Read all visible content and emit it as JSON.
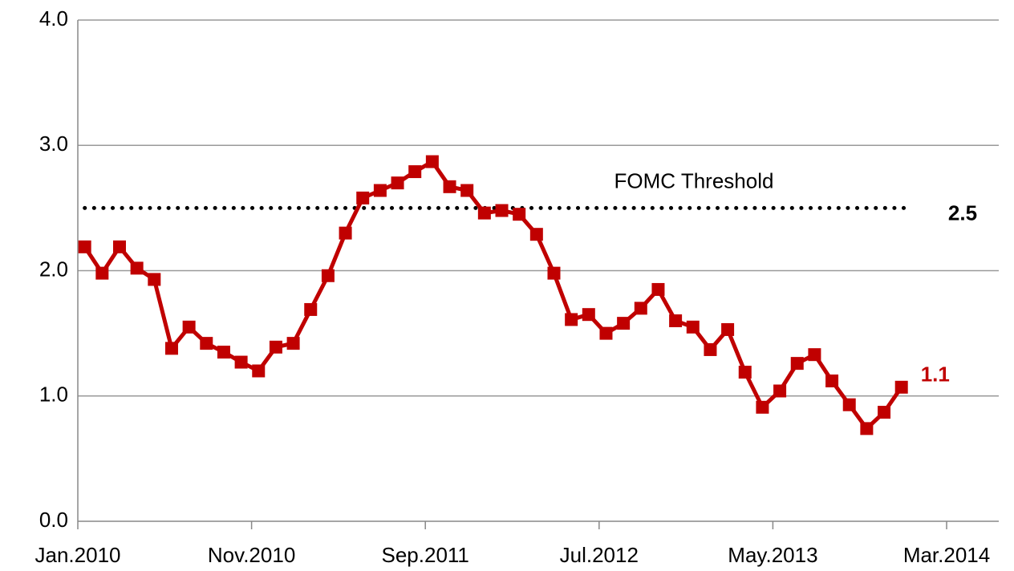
{
  "chart_data": {
    "type": "line",
    "x": [
      "2010-01",
      "2010-02",
      "2010-03",
      "2010-04",
      "2010-05",
      "2010-06",
      "2010-07",
      "2010-08",
      "2010-09",
      "2010-10",
      "2010-11",
      "2010-12",
      "2011-01",
      "2011-02",
      "2011-03",
      "2011-04",
      "2011-05",
      "2011-06",
      "2011-07",
      "2011-08",
      "2011-09",
      "2011-10",
      "2011-11",
      "2011-12",
      "2012-01",
      "2012-02",
      "2012-03",
      "2012-04",
      "2012-05",
      "2012-06",
      "2012-07",
      "2012-08",
      "2012-09",
      "2012-10",
      "2012-11",
      "2012-12",
      "2013-01",
      "2013-02",
      "2013-03",
      "2013-04",
      "2013-05",
      "2013-06",
      "2013-07",
      "2013-08",
      "2013-09",
      "2013-10",
      "2013-11",
      "2013-12"
    ],
    "series": [
      {
        "color": "#c00000",
        "values": [
          2.19,
          1.98,
          2.19,
          2.02,
          1.93,
          1.38,
          1.55,
          1.42,
          1.35,
          1.27,
          1.2,
          1.39,
          1.42,
          1.69,
          1.96,
          2.3,
          2.58,
          2.64,
          2.7,
          2.79,
          2.87,
          2.67,
          2.64,
          2.46,
          2.48,
          2.45,
          2.29,
          1.98,
          1.61,
          1.65,
          1.5,
          1.58,
          1.7,
          1.85,
          1.6,
          1.55,
          1.37,
          1.53,
          1.19,
          0.91,
          1.04,
          1.26,
          1.33,
          1.12,
          0.93,
          0.74,
          0.87,
          1.07
        ],
        "value_labels": [
          null,
          null,
          null,
          null,
          null,
          null,
          null,
          null,
          null,
          null,
          null,
          null,
          null,
          null,
          null,
          null,
          null,
          null,
          null,
          null,
          null,
          null,
          null,
          null,
          null,
          null,
          null,
          null,
          null,
          null,
          null,
          null,
          null,
          null,
          null,
          null,
          null,
          null,
          null,
          null,
          null,
          null,
          null,
          null,
          null,
          null,
          null,
          "1.1"
        ]
      }
    ],
    "reference_line": {
      "value": 2.5,
      "label": "FOMC Threshold",
      "color": "#000000"
    },
    "xlim": [
      "2010-01",
      "2014-06"
    ],
    "xticks": [
      {
        "value": "2010-01",
        "label": "Jan.2010"
      },
      {
        "value": "2010-11",
        "label": "Nov.2010"
      },
      {
        "value": "2011-09",
        "label": "Sep.2011"
      },
      {
        "value": "2012-07",
        "label": "Jul.2012"
      },
      {
        "value": "2013-05",
        "label": "May.2013"
      },
      {
        "value": "2014-03",
        "label": "Mar.2014"
      }
    ],
    "ylim": [
      0,
      4
    ],
    "yticks": [
      {
        "value": 0,
        "label": "0.0"
      },
      {
        "value": 1,
        "label": "1.0"
      },
      {
        "value": 2,
        "label": "2.0"
      },
      {
        "value": 3,
        "label": "3.0"
      },
      {
        "value": 4,
        "label": "4.0"
      }
    ],
    "grid": true
  }
}
